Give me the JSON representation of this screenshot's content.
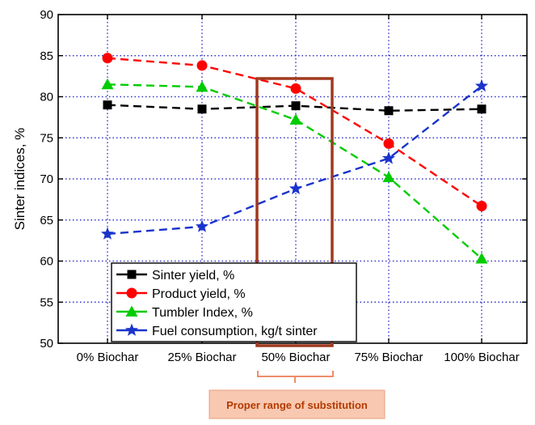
{
  "chart_data": {
    "type": "line",
    "title": "",
    "xlabel": "",
    "ylabel": "Sinter indices, %",
    "categories": [
      "0% Biochar",
      "25% Biochar",
      "50% Biochar",
      "75% Biochar",
      "100% Biochar"
    ],
    "ylim": [
      50,
      90
    ],
    "yticks": [
      50,
      55,
      60,
      65,
      70,
      75,
      80,
      85,
      90
    ],
    "grid": true,
    "legend_position": "bottom-left",
    "series": [
      {
        "name": "Sinter yield, %",
        "values": [
          79.0,
          78.5,
          78.9,
          78.3,
          78.5
        ],
        "color": "#000000",
        "marker": "square"
      },
      {
        "name": "Product yield, %",
        "values": [
          84.7,
          83.8,
          81.0,
          74.3,
          66.7
        ],
        "color": "#ff0000",
        "marker": "circle"
      },
      {
        "name": "Tumbler Index, %",
        "values": [
          81.5,
          81.2,
          77.2,
          70.2,
          60.3
        ],
        "color": "#00cc00",
        "marker": "triangle"
      },
      {
        "name": "Fuel consumption, kg/t sinter",
        "values": [
          63.3,
          64.2,
          68.8,
          72.5,
          81.3
        ],
        "color": "#1a33cc",
        "marker": "star"
      }
    ],
    "highlight": {
      "category": "50% Biochar",
      "color": "#a0391e"
    },
    "annotation": {
      "text": "Proper range of substitution",
      "bg_color": "#f8c8b0",
      "border_color": "#e8a080",
      "text_color": "#b33a00"
    },
    "grid_color": "#3333cc"
  }
}
